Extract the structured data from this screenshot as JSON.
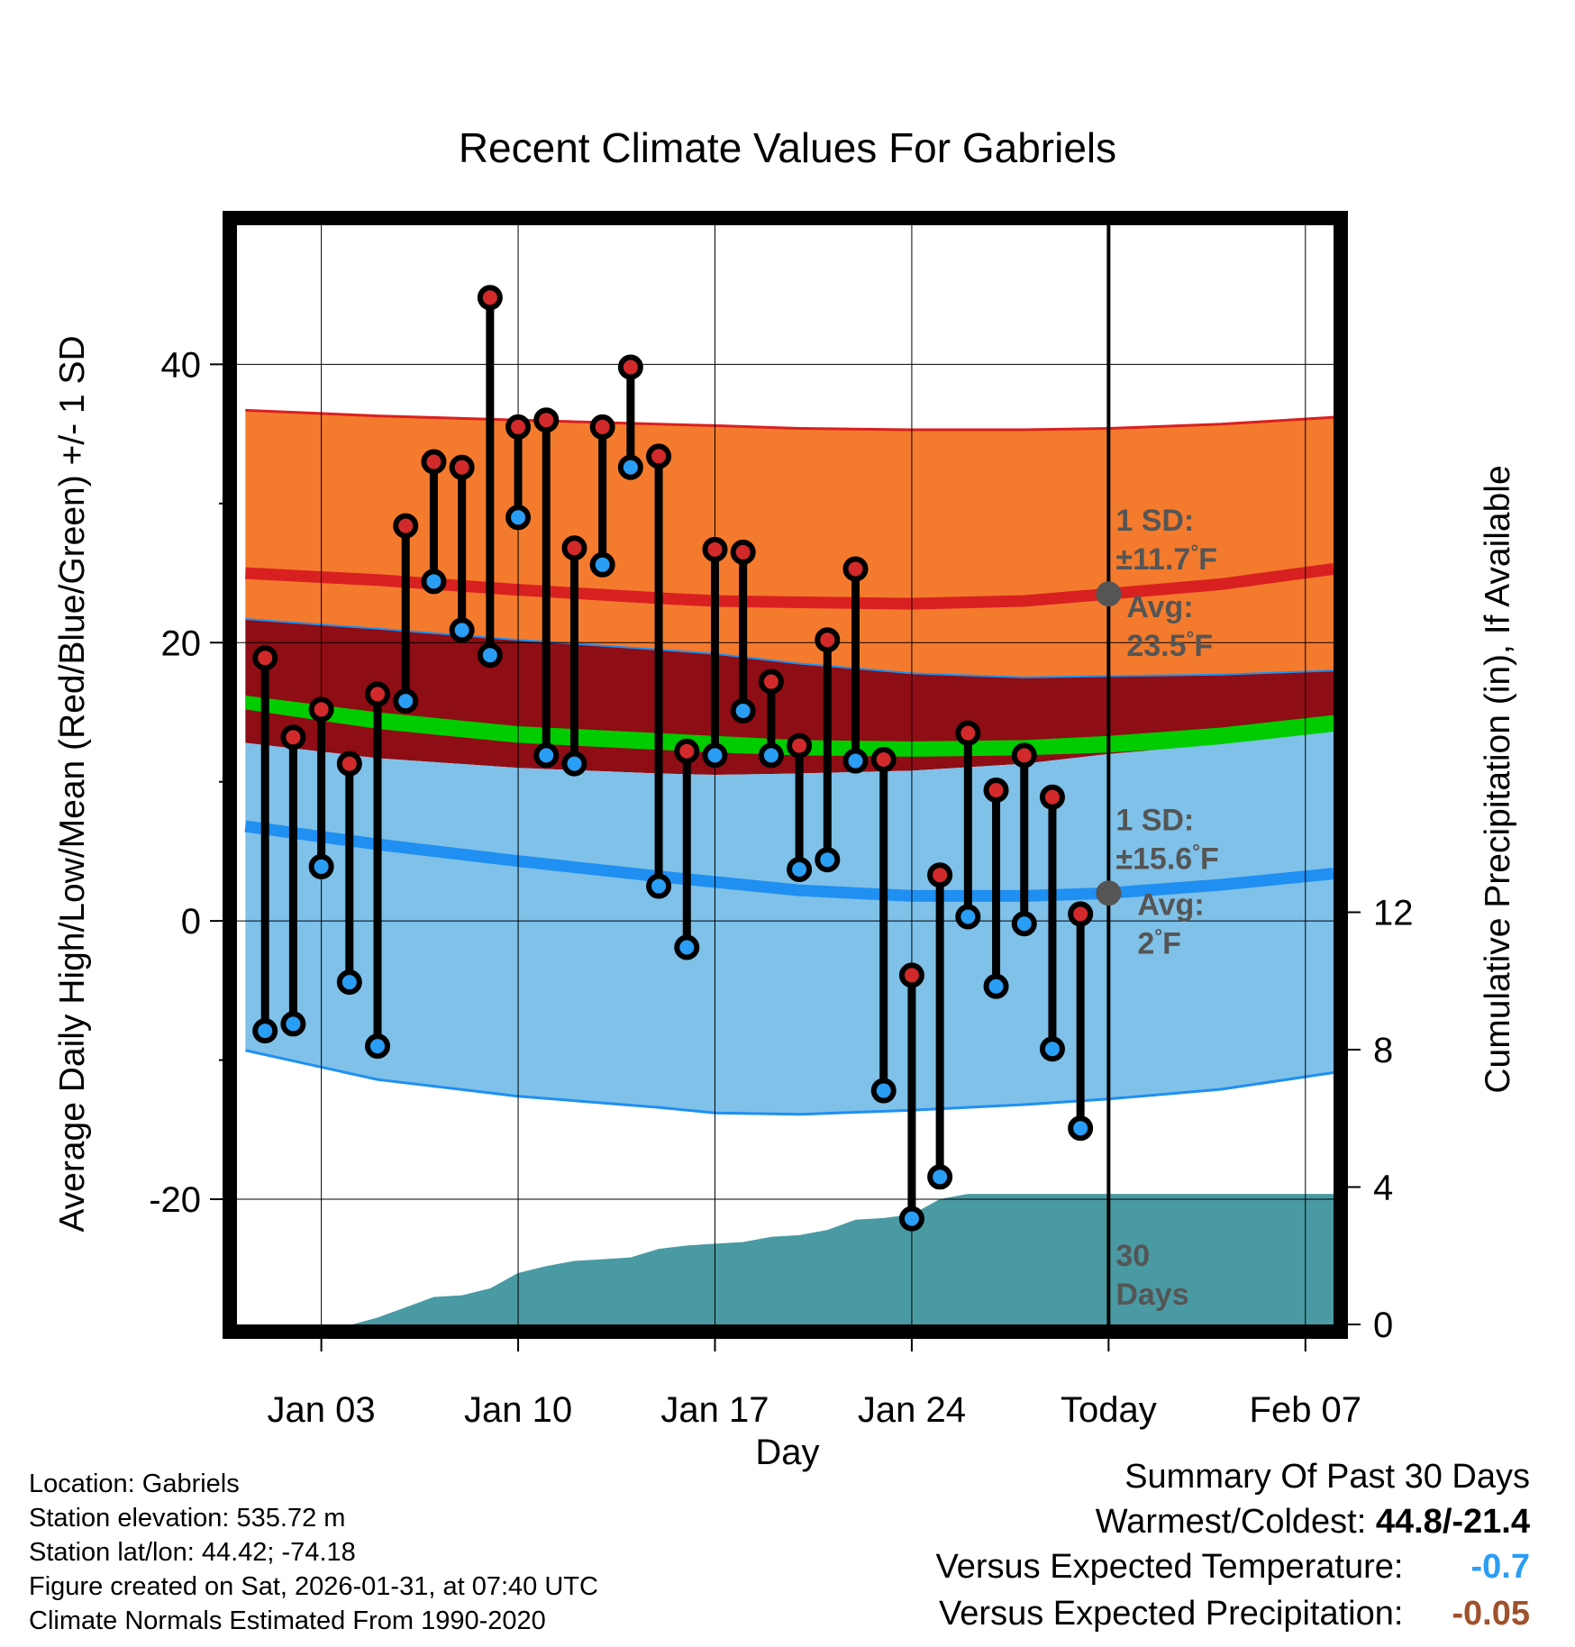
{
  "chart_data": {
    "type": "line",
    "title": "Recent Climate Values For Gabriels",
    "xlabel": "Day",
    "ylabel": "Average Daily High/Low/Mean (Red/Blue/Green) +/- 1 SD",
    "y2label": "Cumulative Precipitation (in), If Available",
    "xlim": [
      0,
      39
    ],
    "ylim": [
      -29,
      50
    ],
    "y2lim": [
      0,
      32
    ],
    "x_ticks": [
      {
        "x": 3,
        "label": "Jan 03"
      },
      {
        "x": 10,
        "label": "Jan 10"
      },
      {
        "x": 17,
        "label": "Jan 17"
      },
      {
        "x": 24,
        "label": "Jan 24"
      },
      {
        "x": 31,
        "label": "Today"
      },
      {
        "x": 38,
        "label": "Feb 07"
      }
    ],
    "y_ticks": [
      -20,
      0,
      20,
      40
    ],
    "y2_ticks": [
      0,
      4,
      8,
      12
    ],
    "today_x": 31,
    "today_label": [
      "30",
      "Days"
    ],
    "normals": {
      "x": [
        0.3,
        5,
        10,
        15,
        17,
        20,
        24,
        28,
        31,
        35,
        39
      ],
      "high_avg": [
        25.0,
        24.5,
        23.8,
        23.2,
        23.0,
        22.9,
        22.8,
        23.0,
        23.5,
        24.2,
        25.3
      ],
      "high_upper": [
        36.7,
        36.3,
        36.0,
        35.7,
        35.6,
        35.4,
        35.3,
        35.3,
        35.4,
        35.7,
        36.2
      ],
      "high_lower": [
        21.7,
        21.0,
        20.2,
        19.5,
        19.2,
        18.5,
        17.8,
        17.5,
        17.6,
        17.7,
        18.0
      ],
      "mean_upper": [
        16.2,
        15.0,
        14.0,
        13.5,
        13.3,
        13.0,
        12.9,
        13.0,
        13.3,
        13.9,
        14.8
      ],
      "mean_lower": [
        15.2,
        13.8,
        12.8,
        12.3,
        12.1,
        11.9,
        11.8,
        11.9,
        12.1,
        12.6,
        13.4
      ],
      "low_avg": [
        6.8,
        5.5,
        4.3,
        3.2,
        2.8,
        2.2,
        1.8,
        1.8,
        2.0,
        2.6,
        3.4
      ],
      "low_upper": [
        12.8,
        11.7,
        11.0,
        10.6,
        10.5,
        10.6,
        10.8,
        11.3,
        12.0,
        12.7,
        13.6
      ],
      "low_lower": [
        -9.3,
        -11.4,
        -12.6,
        -13.4,
        -13.8,
        -13.9,
        -13.6,
        -13.2,
        -12.8,
        -12.1,
        -10.9
      ]
    },
    "series": [
      {
        "name": "High",
        "x": [
          1,
          2,
          3,
          4,
          5,
          6,
          7,
          8,
          9,
          10,
          11,
          12,
          13,
          14,
          15,
          16,
          17,
          18,
          19,
          20,
          21,
          22,
          23,
          24,
          25,
          26,
          27,
          28,
          29,
          30
        ],
        "values": [
          18.9,
          13.2,
          15.2,
          11.3,
          16.3,
          28.4,
          33.0,
          32.6,
          44.8,
          35.5,
          36.0,
          26.8,
          35.5,
          39.8,
          33.4,
          12.2,
          26.7,
          26.5,
          17.2,
          12.6,
          20.2,
          25.3,
          11.6,
          -3.9,
          3.3,
          13.5,
          9.4,
          11.9,
          8.9,
          0.5
        ]
      },
      {
        "name": "Low",
        "x": [
          1,
          2,
          3,
          4,
          5,
          6,
          7,
          8,
          9,
          10,
          11,
          12,
          13,
          14,
          15,
          16,
          17,
          18,
          19,
          20,
          21,
          22,
          23,
          24,
          25,
          26,
          27,
          28,
          29,
          30
        ],
        "values": [
          -7.9,
          -7.4,
          3.9,
          -4.4,
          -9.0,
          15.8,
          24.4,
          20.9,
          19.1,
          29.0,
          11.9,
          11.3,
          25.6,
          32.6,
          2.5,
          -1.9,
          11.9,
          15.1,
          11.9,
          3.7,
          4.4,
          11.5,
          -12.2,
          -21.4,
          -18.4,
          0.3,
          -4.7,
          -0.2,
          -9.2,
          -14.9
        ]
      }
    ],
    "annotations": {
      "high": {
        "x": 31,
        "y": 23.5,
        "sd_label": "1 SD:",
        "sd_value": "±11.7",
        "avg_label": "Avg:",
        "avg_value": "23.5",
        "unit": "°F"
      },
      "low": {
        "x": 31,
        "y": 2,
        "sd_label": "1 SD:",
        "sd_value": "±15.6",
        "avg_label": "Avg:",
        "avg_value": "2",
        "unit": "°F"
      }
    },
    "precip": {
      "x": [
        4.1,
        5,
        6,
        7,
        8,
        9,
        10,
        11,
        12,
        13,
        14,
        15,
        16,
        17,
        18,
        19,
        20,
        21,
        22,
        23,
        23.5,
        24,
        25,
        26,
        27,
        28,
        31,
        39
      ],
      "values": [
        0,
        0.2,
        0.5,
        0.8,
        0.85,
        1.05,
        1.5,
        1.7,
        1.85,
        1.9,
        1.95,
        2.2,
        2.3,
        2.35,
        2.4,
        2.55,
        2.6,
        2.75,
        3.05,
        3.1,
        3.15,
        3.2,
        3.65,
        3.8,
        3.8,
        3.8,
        3.8,
        3.8
      ]
    },
    "colors": {
      "high_band": "#f47b2d",
      "high_line": "#d92020",
      "mean_band_shading": "#8f0d14",
      "mean_band": "#00cc00",
      "low_band": "#7fc1e8",
      "low_line": "#1f8ff2",
      "precip": "#4a9aa3",
      "high_marker": "#d22a2a",
      "low_marker": "#2a9df4"
    }
  },
  "footer": {
    "location": "Location: Gabriels",
    "elevation": "Station elevation: 535.72 m",
    "latlon": "Station lat/lon: 44.42; -74.18",
    "created": "Figure created on Sat, 2026-01-31, at 07:40 UTC",
    "normals": "Climate Normals Estimated From 1990-2020"
  },
  "summary": {
    "title": "Summary Of Past 30 Days",
    "warm_cold_label": "Warmest/Coldest:",
    "warm_cold_value": "44.8/-21.4",
    "temp_label": "Versus Expected Temperature:",
    "temp_value": "-0.7",
    "temp_color": "#2a9df4",
    "precip_label": "Versus Expected Precipitation:",
    "precip_value": "-0.05",
    "precip_color": "#a0522d"
  }
}
